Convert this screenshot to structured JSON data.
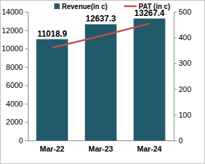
{
  "chart_data": {
    "type": "bar",
    "categories": [
      "Mar-22",
      "Mar-23",
      "Mar-24"
    ],
    "series": [
      {
        "name": "Revenue(in c)",
        "type": "bar",
        "color": "#215a6a",
        "values": [
          11018.9,
          12637.3,
          13267.4
        ],
        "data_labels": true
      },
      {
        "name": "PAT (in c)",
        "type": "line",
        "color": "#c0504d",
        "axis": "y2",
        "values": [
          360,
          406,
          454
        ]
      }
    ],
    "ylim": [
      0,
      14000
    ],
    "yticks": [
      0,
      2000,
      4000,
      6000,
      8000,
      10000,
      12000,
      14000
    ],
    "y2lim": [
      0,
      500
    ],
    "y2ticks": [
      0,
      100,
      200,
      300,
      400,
      500
    ],
    "grid": false,
    "legend": "top"
  }
}
